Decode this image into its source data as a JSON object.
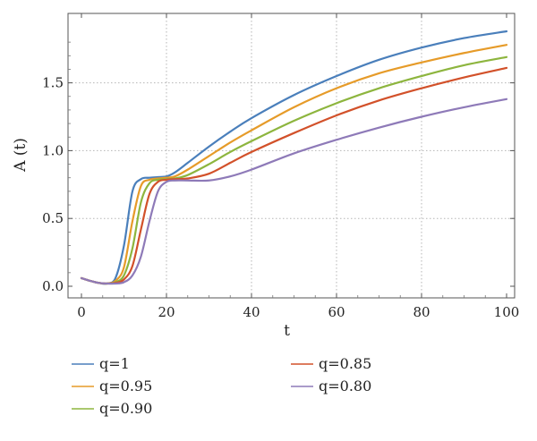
{
  "chart_data": {
    "type": "line",
    "xlabel": "t",
    "ylabel": "A (t)",
    "xlim": [
      0,
      100
    ],
    "ylim": [
      0,
      1.9
    ],
    "xticks": [
      0,
      20,
      40,
      60,
      80,
      100
    ],
    "yticks": [
      0.0,
      0.5,
      1.0,
      1.5
    ],
    "xtick_labels": [
      "0",
      "20",
      "40",
      "60",
      "80",
      "100"
    ],
    "ytick_labels": [
      "0.0",
      "0.5",
      "1.0",
      "1.5"
    ],
    "grid": true,
    "legend_position": "bottom",
    "x": [
      0,
      2,
      4,
      6,
      8,
      10,
      12,
      14,
      16,
      18,
      20,
      22,
      25,
      30,
      35,
      40,
      50,
      60,
      70,
      80,
      90,
      100
    ],
    "series": [
      {
        "name": "q=1",
        "color": "#4a7fbb",
        "values": [
          0.06,
          0.04,
          0.025,
          0.02,
          0.06,
          0.3,
          0.7,
          0.79,
          0.8,
          0.805,
          0.81,
          0.84,
          0.91,
          1.03,
          1.14,
          1.24,
          1.41,
          1.55,
          1.67,
          1.76,
          1.83,
          1.88
        ]
      },
      {
        "name": "q=0.95",
        "color": "#e69b29",
        "values": [
          0.06,
          0.04,
          0.025,
          0.02,
          0.04,
          0.14,
          0.48,
          0.74,
          0.785,
          0.795,
          0.8,
          0.81,
          0.86,
          0.96,
          1.06,
          1.15,
          1.32,
          1.46,
          1.57,
          1.65,
          1.72,
          1.78
        ]
      },
      {
        "name": "q=0.90",
        "color": "#8db53e",
        "values": [
          0.06,
          0.04,
          0.025,
          0.02,
          0.03,
          0.08,
          0.28,
          0.62,
          0.76,
          0.785,
          0.79,
          0.795,
          0.82,
          0.9,
          0.99,
          1.07,
          1.22,
          1.35,
          1.46,
          1.55,
          1.63,
          1.69
        ]
      },
      {
        "name": "q=0.85",
        "color": "#d2512a",
        "values": [
          0.06,
          0.04,
          0.025,
          0.02,
          0.025,
          0.05,
          0.15,
          0.42,
          0.68,
          0.77,
          0.785,
          0.79,
          0.795,
          0.83,
          0.91,
          0.99,
          1.13,
          1.26,
          1.37,
          1.46,
          1.54,
          1.61
        ]
      },
      {
        "name": "q=0.80",
        "color": "#8e7ab8",
        "values": [
          0.06,
          0.04,
          0.025,
          0.02,
          0.02,
          0.03,
          0.08,
          0.22,
          0.48,
          0.7,
          0.77,
          0.78,
          0.78,
          0.78,
          0.81,
          0.86,
          0.98,
          1.08,
          1.17,
          1.25,
          1.32,
          1.38
        ]
      }
    ]
  }
}
